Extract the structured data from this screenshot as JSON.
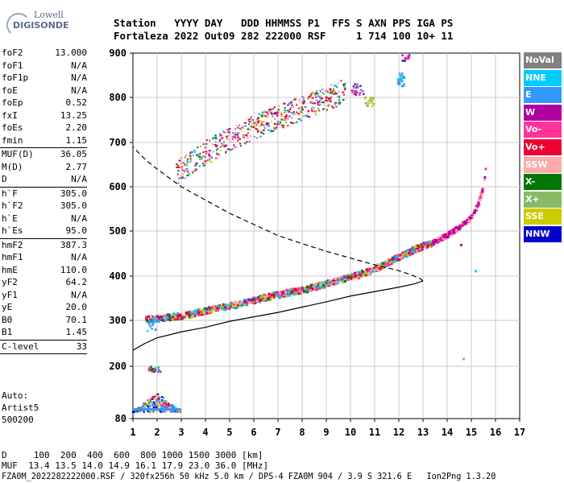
{
  "logo": {
    "line1": "Lowell",
    "line2": "DIGISONDE"
  },
  "header": {
    "labels": "Station   YYYY DAY   DDD HHMMSS P1  FFS S AXN PPS IGA PS",
    "values": "Fortaleza 2022 Out09 282 222000 RSF     1 714 100 10+ 11"
  },
  "params_group1": [
    {
      "k": "foF2",
      "v": "13.000"
    },
    {
      "k": "foF1",
      "v": "N/A"
    },
    {
      "k": "foF1p",
      "v": "N/A"
    },
    {
      "k": "foE",
      "v": "N/A"
    },
    {
      "k": "foEp",
      "v": "0.52"
    },
    {
      "k": "fxI",
      "v": "13.25"
    },
    {
      "k": "foEs",
      "v": "2.20"
    },
    {
      "k": "fmin",
      "v": "1.15"
    }
  ],
  "params_group2": [
    {
      "k": "MUF(D)",
      "v": "36.05"
    },
    {
      "k": "M(D)",
      "v": "2.77"
    },
    {
      "k": "D",
      "v": "N/A"
    }
  ],
  "params_group3": [
    {
      "k": "h`F",
      "v": "305.0"
    },
    {
      "k": "h`F2",
      "v": "305.0"
    },
    {
      "k": "h`E",
      "v": "N/A"
    },
    {
      "k": "h`Es",
      "v": "95.0"
    }
  ],
  "params_group4": [
    {
      "k": "hmF2",
      "v": "387.3"
    },
    {
      "k": "hmF1",
      "v": "N/A"
    },
    {
      "k": "hmE",
      "v": "110.0"
    },
    {
      "k": "yF2",
      "v": "64.2"
    },
    {
      "k": "yF1",
      "v": "N/A"
    },
    {
      "k": "yE",
      "v": "20.0"
    },
    {
      "k": "B0",
      "v": "70.1"
    },
    {
      "k": "B1",
      "v": "1.45"
    }
  ],
  "params_group5": [
    {
      "k": "C-level",
      "v": "33"
    }
  ],
  "auto": {
    "line1": "Auto:",
    "line2": "Artist5",
    "line3": "500200"
  },
  "footer": {
    "d_line": "D     100  200  400  600  800 1000 1500 3000 [km]",
    "muf_line": "MUF  13.4 13.5 14.0 14.9 16.1 17.9 23.0 36.0 [MHz]",
    "file_line": "FZA0M_2022282222000.RSF / 320fx256h 50 kHz 5.0 km / DPS-4 FZA0M 904 / 3.9 S 321.6 E   Ion2Png 1.3.20"
  },
  "legend": [
    {
      "label": "NoVal",
      "color": "#808080",
      "text_color": "#ffffff"
    },
    {
      "label": "NNE",
      "color": "#00ccff",
      "text_color": "#ffffff"
    },
    {
      "label": "E",
      "color": "#3399ff",
      "text_color": "#ffffff"
    },
    {
      "label": "W",
      "color": "#b000a0",
      "text_color": "#ffffff"
    },
    {
      "label": "Vo-",
      "color": "#ff3399",
      "text_color": "#ffffff"
    },
    {
      "label": "Vo+",
      "color": "#ee0033",
      "text_color": "#ffffff"
    },
    {
      "label": "SSW",
      "color": "#ffaaaa",
      "text_color": "#ffffff"
    },
    {
      "label": "X-",
      "color": "#007700",
      "text_color": "#ffffff"
    },
    {
      "label": "X+",
      "color": "#88bb66",
      "text_color": "#ffffff"
    },
    {
      "label": "SSE",
      "color": "#cccc00",
      "text_color": "#ffffff"
    },
    {
      "label": "NNW",
      "color": "#0000cc",
      "text_color": "#ffffff"
    }
  ],
  "chart_data": {
    "type": "scatter",
    "x_ticks": [
      "1",
      "2",
      "3",
      "4",
      "5",
      "6",
      "7",
      "8",
      "9",
      "10",
      "11",
      "12",
      "13",
      "14",
      "15",
      "16",
      "17"
    ],
    "y_ticks": [
      "80",
      "200",
      "300",
      "400",
      "500",
      "600",
      "700",
      "800",
      "900"
    ],
    "xlim": [
      1,
      17
    ],
    "ylim": [
      80,
      900
    ],
    "grid": true,
    "legend_placement": "right",
    "f_trace": [
      [
        1.55,
        302
      ],
      [
        2.0,
        303
      ],
      [
        2.5,
        307
      ],
      [
        3.0,
        310
      ],
      [
        3.5,
        315
      ],
      [
        4.0,
        322
      ],
      [
        4.5,
        327
      ],
      [
        5.0,
        332
      ],
      [
        5.5,
        338
      ],
      [
        6.0,
        345
      ],
      [
        6.5,
        352
      ],
      [
        7.0,
        358
      ],
      [
        7.5,
        363
      ],
      [
        8.0,
        368
      ],
      [
        8.5,
        375
      ],
      [
        9.0,
        382
      ],
      [
        9.5,
        390
      ],
      [
        10.0,
        397
      ],
      [
        10.5,
        405
      ],
      [
        11.0,
        415
      ],
      [
        11.5,
        428
      ],
      [
        12.0,
        442
      ],
      [
        12.5,
        455
      ],
      [
        13.0,
        466
      ],
      [
        13.5,
        476
      ],
      [
        14.0,
        490
      ],
      [
        14.5,
        508
      ],
      [
        15.0,
        530
      ],
      [
        15.3,
        560
      ],
      [
        15.5,
        600
      ],
      [
        15.6,
        640
      ]
    ],
    "f_trace_upper": [
      [
        2.8,
        615
      ],
      [
        3.5,
        640
      ],
      [
        4.0,
        660
      ],
      [
        5.0,
        690
      ],
      [
        6.0,
        715
      ],
      [
        7.0,
        740
      ],
      [
        8.0,
        760
      ],
      [
        9.0,
        780
      ],
      [
        9.8,
        800
      ]
    ],
    "es_trace": [
      [
        1.0,
        103
      ],
      [
        1.5,
        106
      ],
      [
        2.0,
        110
      ],
      [
        2.5,
        112
      ],
      [
        2.9,
        108
      ]
    ],
    "profile_curve": [
      [
        1.0,
        235
      ],
      [
        1.5,
        250
      ],
      [
        2.0,
        262
      ],
      [
        3.0,
        275
      ],
      [
        4.0,
        285
      ],
      [
        5.0,
        298
      ],
      [
        6.0,
        308
      ],
      [
        7.0,
        318
      ],
      [
        8.0,
        330
      ],
      [
        9.0,
        342
      ],
      [
        10.0,
        355
      ],
      [
        11.0,
        365
      ],
      [
        12.0,
        375
      ],
      [
        12.6,
        382
      ],
      [
        13.0,
        389
      ],
      [
        12.9,
        394
      ],
      [
        12.5,
        403
      ],
      [
        12.0,
        412
      ],
      [
        11.0,
        425
      ],
      [
        10.0,
        440
      ],
      [
        9.0,
        455
      ],
      [
        8.0,
        472
      ],
      [
        7.0,
        490
      ],
      [
        6.0,
        515
      ],
      [
        5.0,
        540
      ],
      [
        4.0,
        570
      ],
      [
        3.0,
        600
      ],
      [
        2.5,
        620
      ],
      [
        2.0,
        640
      ],
      [
        1.5,
        662
      ],
      [
        1.0,
        690
      ]
    ]
  }
}
